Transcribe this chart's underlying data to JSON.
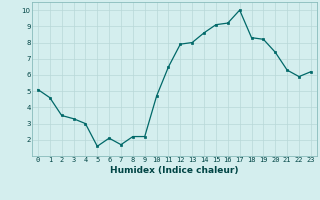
{
  "x": [
    0,
    1,
    2,
    3,
    4,
    5,
    6,
    7,
    8,
    9,
    10,
    11,
    12,
    13,
    14,
    15,
    16,
    17,
    18,
    19,
    20,
    21,
    22,
    23
  ],
  "y": [
    5.1,
    4.6,
    3.5,
    3.3,
    3.0,
    1.6,
    2.1,
    1.7,
    2.2,
    2.2,
    4.7,
    6.5,
    7.9,
    8.0,
    8.6,
    9.1,
    9.2,
    10.0,
    8.3,
    8.2,
    7.4,
    6.3,
    5.9,
    6.2
  ],
  "xlabel": "Humidex (Indice chaleur)",
  "yticks": [
    2,
    3,
    4,
    5,
    6,
    7,
    8,
    9,
    10
  ],
  "xtick_labels": [
    "0",
    "1",
    "2",
    "3",
    "4",
    "5",
    "6",
    "7",
    "8",
    "9",
    "10",
    "11",
    "12",
    "13",
    "14",
    "15",
    "16",
    "17",
    "18",
    "19",
    "20",
    "21",
    "22",
    "23"
  ],
  "line_color": "#006868",
  "marker": "s",
  "marker_size": 2,
  "bg_color": "#d4eeee",
  "grid_color": "#b8d8d8",
  "axes_bg": "#d4eeee",
  "spine_color": "#88bbbb",
  "label_color": "#004444",
  "tick_fontsize": 5,
  "xlabel_fontsize": 6.5
}
